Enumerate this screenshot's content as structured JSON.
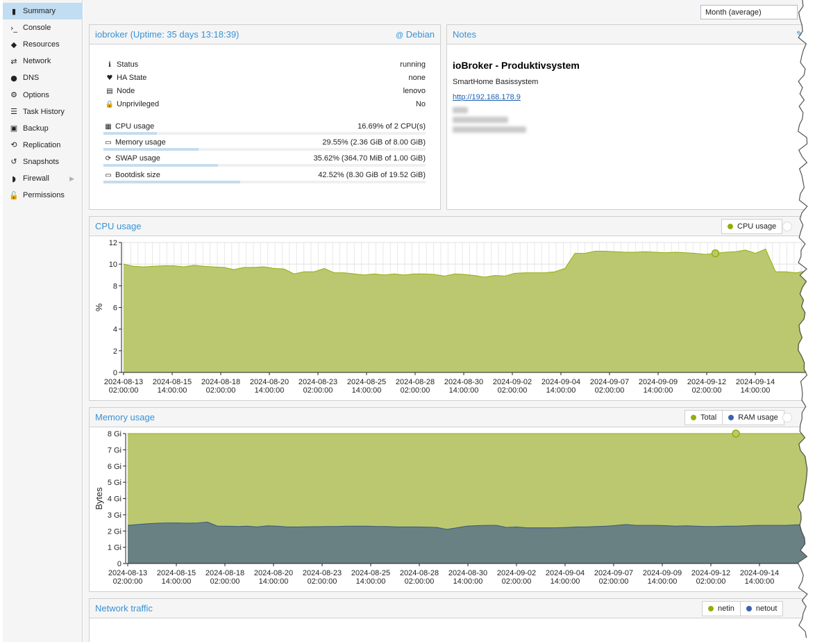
{
  "sidebar": {
    "items": [
      {
        "label": "Summary",
        "icon": "book-icon",
        "glyph": "▮",
        "active": true
      },
      {
        "label": "Console",
        "icon": "terminal-icon",
        "glyph": "›_"
      },
      {
        "label": "Resources",
        "icon": "cube-icon",
        "glyph": "◆"
      },
      {
        "label": "Network",
        "icon": "exchange-icon",
        "glyph": "⇄"
      },
      {
        "label": "DNS",
        "icon": "globe-icon",
        "glyph": "●"
      },
      {
        "label": "Options",
        "icon": "gear-icon",
        "glyph": "⚙"
      },
      {
        "label": "Task History",
        "icon": "list-icon",
        "glyph": "☰"
      },
      {
        "label": "Backup",
        "icon": "floppy-icon",
        "glyph": "▣"
      },
      {
        "label": "Replication",
        "icon": "retweet-icon",
        "glyph": "⟲"
      },
      {
        "label": "Snapshots",
        "icon": "history-icon",
        "glyph": "↺"
      },
      {
        "label": "Firewall",
        "icon": "shield-icon",
        "glyph": "◗",
        "chevron": "▶"
      },
      {
        "label": "Permissions",
        "icon": "unlock-icon",
        "glyph": "🔓"
      }
    ]
  },
  "timeframe": {
    "value": "Month (average)"
  },
  "status_panel": {
    "title": "iobroker (Uptime: 35 days 13:18:39)",
    "os_label": "Debian",
    "rows": [
      {
        "label": "Status",
        "value": "running",
        "icon": "info-icon",
        "glyph": "ℹ"
      },
      {
        "label": "HA State",
        "value": "none",
        "icon": "heartbeat-icon",
        "glyph": "♥"
      },
      {
        "label": "Node",
        "value": "lenovo",
        "icon": "server-icon",
        "glyph": "▤"
      },
      {
        "label": "Unprivileged",
        "value": "No",
        "icon": "lock-icon",
        "glyph": "🔒"
      }
    ],
    "usage": [
      {
        "label": "CPU usage",
        "value": "16.69% of 2 CPU(s)",
        "fraction": 0.1669,
        "icon": "chip-icon",
        "glyph": "▦"
      },
      {
        "label": "Memory usage",
        "value": "29.55% (2.36 GiB of 8.00 GiB)",
        "fraction": 0.2955,
        "icon": "memory-icon",
        "glyph": "▭"
      },
      {
        "label": "SWAP usage",
        "value": "35.62% (364.70 MiB of 1.00 GiB)",
        "fraction": 0.3562,
        "icon": "refresh-icon",
        "glyph": "⟳"
      },
      {
        "label": "Bootdisk size",
        "value": "42.52% (8.30 GiB of 19.52 GiB)",
        "fraction": 0.4252,
        "icon": "hdd-icon",
        "glyph": "▭"
      }
    ]
  },
  "notes_panel": {
    "title": "Notes",
    "heading": "ioBroker - Produktivsystem",
    "subtitle": "SmartHome Basissystem",
    "link": "http://192.168.178.9"
  },
  "colors": {
    "accent": "#3892d4",
    "cpu_fill": "#bcc86f",
    "cpu_line": "#94ae0a",
    "ram_fill": "#6a8184",
    "ram_line": "#355a78",
    "netin": "#94ae0a",
    "netout": "#3e62a8"
  },
  "cpu_panel": {
    "title": "CPU usage",
    "legend": [
      "CPU usage"
    ]
  },
  "memory_panel": {
    "title": "Memory usage",
    "legend": [
      "Total",
      "RAM usage"
    ]
  },
  "network_panel": {
    "title": "Network traffic",
    "legend": [
      "netin",
      "netout"
    ]
  },
  "chart_data": [
    {
      "type": "area",
      "title": "CPU usage",
      "ylabel": "%",
      "ylim": [
        0,
        12
      ],
      "yticks": [
        0,
        2,
        4,
        6,
        8,
        10,
        12
      ],
      "grid": true,
      "x_tick_labels": [
        [
          "2024-08-13",
          "02:00:00"
        ],
        [
          "2024-08-15",
          "14:00:00"
        ],
        [
          "2024-08-18",
          "02:00:00"
        ],
        [
          "2024-08-20",
          "14:00:00"
        ],
        [
          "2024-08-23",
          "02:00:00"
        ],
        [
          "2024-08-25",
          "14:00:00"
        ],
        [
          "2024-08-28",
          "02:00:00"
        ],
        [
          "2024-08-30",
          "14:00:00"
        ],
        [
          "2024-09-02",
          "02:00:00"
        ],
        [
          "2024-09-04",
          "14:00:00"
        ],
        [
          "2024-09-07",
          "02:00:00"
        ],
        [
          "2024-09-09",
          "14:00:00"
        ],
        [
          "2024-09-12",
          "02:00:00"
        ],
        [
          "2024-09-14",
          "14:00:00"
        ]
      ],
      "series": [
        {
          "name": "CPU usage",
          "values": [
            10.0,
            9.8,
            9.75,
            9.8,
            9.85,
            9.85,
            9.75,
            9.9,
            9.8,
            9.75,
            9.7,
            9.5,
            9.7,
            9.7,
            9.75,
            9.6,
            9.55,
            9.1,
            9.3,
            9.3,
            9.6,
            9.2,
            9.2,
            9.1,
            9.0,
            9.1,
            9.0,
            9.1,
            9.0,
            9.1,
            9.1,
            9.05,
            8.9,
            9.1,
            9.05,
            8.95,
            8.8,
            8.95,
            8.9,
            9.15,
            9.2,
            9.2,
            9.2,
            9.3,
            9.6,
            11.0,
            11.0,
            11.2,
            11.2,
            11.15,
            11.1,
            11.1,
            11.15,
            11.1,
            11.05,
            11.1,
            11.05,
            11.0,
            10.9,
            11.0,
            11.1,
            11.15,
            11.3,
            11.0,
            11.4,
            9.3,
            9.3,
            9.2,
            9.35,
            9.25
          ]
        }
      ]
    },
    {
      "type": "area",
      "title": "Memory usage",
      "ylabel": "Bytes",
      "ylim": [
        0,
        8
      ],
      "ytick_labels": [
        "0",
        "1 Gi",
        "2 Gi",
        "3 Gi",
        "4 Gi",
        "5 Gi",
        "6 Gi",
        "7 Gi",
        "8 Gi"
      ],
      "grid": true,
      "x_tick_labels": [
        [
          "2024-08-13",
          "02:00:00"
        ],
        [
          "2024-08-15",
          "14:00:00"
        ],
        [
          "2024-08-18",
          "02:00:00"
        ],
        [
          "2024-08-20",
          "14:00:00"
        ],
        [
          "2024-08-23",
          "02:00:00"
        ],
        [
          "2024-08-25",
          "14:00:00"
        ],
        [
          "2024-08-28",
          "02:00:00"
        ],
        [
          "2024-08-30",
          "14:00:00"
        ],
        [
          "2024-09-02",
          "02:00:00"
        ],
        [
          "2024-09-04",
          "14:00:00"
        ],
        [
          "2024-09-07",
          "02:00:00"
        ],
        [
          "2024-09-09",
          "14:00:00"
        ],
        [
          "2024-09-12",
          "02:00:00"
        ],
        [
          "2024-09-14",
          "14:00:00"
        ]
      ],
      "series": [
        {
          "name": "Total",
          "values": [
            8,
            8,
            8,
            8,
            8,
            8,
            8,
            8,
            8,
            8,
            8,
            8,
            8,
            8,
            8,
            8,
            8,
            8,
            8,
            8,
            8,
            8,
            8,
            8,
            8,
            8,
            8,
            8,
            8,
            8,
            8,
            8,
            8,
            8,
            8,
            8,
            8,
            8,
            8,
            8,
            8,
            8,
            8,
            8,
            8,
            8,
            8,
            8,
            8,
            8,
            8,
            8,
            8,
            8,
            8,
            8,
            8,
            8,
            8,
            8,
            8,
            8,
            8,
            8,
            8,
            8,
            8,
            8,
            8,
            8
          ]
        },
        {
          "name": "RAM usage",
          "values": [
            2.35,
            2.4,
            2.45,
            2.48,
            2.5,
            2.5,
            2.48,
            2.5,
            2.55,
            2.3,
            2.3,
            2.28,
            2.3,
            2.25,
            2.32,
            2.3,
            2.25,
            2.25,
            2.26,
            2.27,
            2.28,
            2.28,
            2.3,
            2.3,
            2.3,
            2.28,
            2.28,
            2.25,
            2.25,
            2.25,
            2.24,
            2.22,
            2.1,
            2.2,
            2.3,
            2.33,
            2.35,
            2.35,
            2.22,
            2.25,
            2.2,
            2.2,
            2.2,
            2.2,
            2.22,
            2.25,
            2.25,
            2.28,
            2.3,
            2.35,
            2.4,
            2.35,
            2.35,
            2.35,
            2.33,
            2.3,
            2.32,
            2.3,
            2.28,
            2.28,
            2.3,
            2.3,
            2.32,
            2.35,
            2.35,
            2.35,
            2.35,
            2.38,
            2.4,
            2.4
          ]
        }
      ]
    }
  ]
}
